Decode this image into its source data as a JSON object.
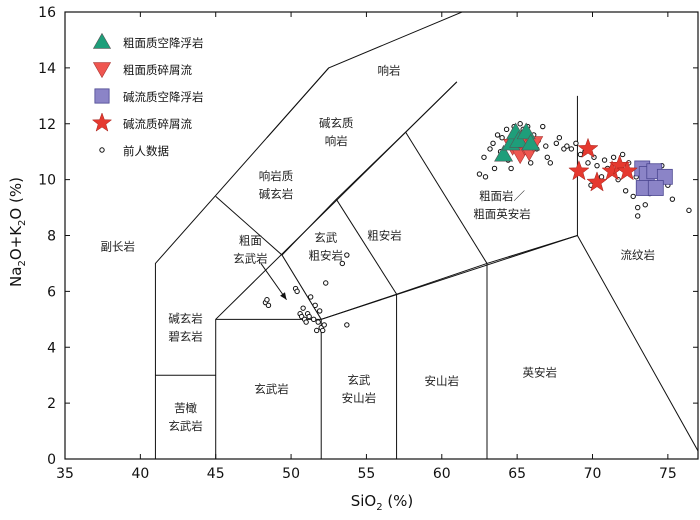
{
  "chart_data": {
    "type": "scatter",
    "title": "",
    "xlabel": "SiO",
    "xlabel_sub": "2",
    "xlabel_tail": " (%)",
    "ylabel": {
      "a": "Na",
      "a_sub": "2",
      "b": "O+K",
      "b_sub": "2",
      "c": "O (%)"
    },
    "xlim": [
      35,
      77
    ],
    "ylim": [
      0,
      16
    ],
    "xticks": [
      35,
      40,
      45,
      50,
      55,
      60,
      65,
      70,
      75
    ],
    "yticks": [
      0,
      2,
      4,
      6,
      8,
      10,
      12,
      14,
      16
    ],
    "boundaries": [
      [
        [
          41,
          0
        ],
        [
          41,
          7
        ],
        [
          52.5,
          14
        ],
        [
          69,
          17.73
        ]
      ],
      [
        [
          41,
          3
        ],
        [
          45,
          3
        ]
      ],
      [
        [
          45,
          0
        ],
        [
          45,
          5
        ],
        [
          61,
          13.5
        ]
      ],
      [
        [
          45,
          5
        ],
        [
          52,
          5
        ],
        [
          69,
          8
        ],
        [
          77.3,
          0
        ]
      ],
      [
        [
          52,
          0
        ],
        [
          52,
          5
        ],
        [
          57,
          5.9
        ],
        [
          63,
          7
        ],
        [
          69,
          8
        ]
      ],
      [
        [
          57,
          0
        ],
        [
          57,
          5.9
        ]
      ],
      [
        [
          63,
          0
        ],
        [
          63,
          7
        ]
      ],
      [
        [
          69,
          8
        ],
        [
          69,
          13
        ]
      ],
      [
        [
          45,
          9.4
        ],
        [
          49.4,
          7.3
        ],
        [
          53,
          9.3
        ],
        [
          57.6,
          11.7
        ],
        [
          61,
          13.5
        ]
      ],
      [
        [
          48.4,
          11.5
        ],
        [
          52.5,
          14
        ]
      ],
      [
        [
          49.4,
          7.3
        ],
        [
          52,
          5
        ]
      ],
      [
        [
          53,
          9.3
        ],
        [
          57,
          5.9
        ]
      ],
      [
        [
          57.6,
          11.7
        ],
        [
          63,
          7
        ]
      ]
    ],
    "field_labels": [
      {
        "lines": [
          "响岩"
        ],
        "x": 56.5,
        "y": 13.9
      },
      {
        "lines": [
          "碱玄质",
          "响岩"
        ],
        "x": 53.0,
        "y": 11.7
      },
      {
        "lines": [
          "响岩质",
          "碱玄岩"
        ],
        "x": 49.0,
        "y": 9.8
      },
      {
        "lines": [
          "粗面",
          "玄武岩"
        ],
        "x": 47.3,
        "y": 7.5
      },
      {
        "lines": [
          "玄武",
          "粗安岩"
        ],
        "x": 52.3,
        "y": 7.6
      },
      {
        "lines": [
          "粗安岩"
        ],
        "x": 56.2,
        "y": 8.0
      },
      {
        "lines": [
          "粗面岩／",
          "粗面英安岩"
        ],
        "x": 64.0,
        "y": 9.1
      },
      {
        "lines": [
          "副长岩"
        ],
        "x": 38.5,
        "y": 7.6
      },
      {
        "lines": [
          "碱玄岩",
          "碧玄岩"
        ],
        "x": 43.0,
        "y": 4.7
      },
      {
        "lines": [
          "流纹岩"
        ],
        "x": 73.0,
        "y": 7.3
      },
      {
        "lines": [
          "玄武岩"
        ],
        "x": 48.7,
        "y": 2.5
      },
      {
        "lines": [
          "玄武",
          "安山岩"
        ],
        "x": 54.5,
        "y": 2.5
      },
      {
        "lines": [
          "安山岩"
        ],
        "x": 60.0,
        "y": 2.8
      },
      {
        "lines": [
          "英安岩"
        ],
        "x": 66.5,
        "y": 3.1
      },
      {
        "lines": [
          "苦橄",
          "玄武岩"
        ],
        "x": 43.0,
        "y": 1.5
      }
    ],
    "arrow": {
      "from": [
        48.0,
        7.0
      ],
      "to": [
        49.7,
        5.7
      ]
    },
    "series": [
      {
        "name": "粗面质空降浮岩",
        "marker": "triangle-up",
        "color": "#1e9e7a",
        "points": [
          [
            64.1,
            10.9
          ],
          [
            64.6,
            11.3
          ],
          [
            64.9,
            11.7
          ],
          [
            65.1,
            11.4
          ],
          [
            65.6,
            11.7
          ],
          [
            65.9,
            11.3
          ]
        ]
      },
      {
        "name": "粗面质碎屑流",
        "marker": "triangle-down",
        "color": "#ef5650",
        "points": [
          [
            64.7,
            11.2
          ],
          [
            65.2,
            10.9
          ],
          [
            65.5,
            11.2
          ],
          [
            65.8,
            11.0
          ],
          [
            66.1,
            11.3
          ],
          [
            65.3,
            11.5
          ]
        ]
      },
      {
        "name": "碱流质空降浮岩",
        "marker": "square",
        "color": "#8b84c7",
        "points": [
          [
            73.3,
            10.4
          ],
          [
            73.6,
            10.2
          ],
          [
            74.1,
            10.3
          ],
          [
            74.8,
            10.1
          ],
          [
            73.4,
            9.7
          ],
          [
            74.2,
            9.7
          ]
        ]
      },
      {
        "name": "碱流质碎屑流",
        "marker": "star",
        "color": "#e5392f",
        "points": [
          [
            69.1,
            10.3
          ],
          [
            69.7,
            11.1
          ],
          [
            70.3,
            9.9
          ],
          [
            71.3,
            10.3
          ],
          [
            71.8,
            10.5
          ],
          [
            72.3,
            10.3
          ]
        ]
      },
      {
        "name": "前人数据",
        "marker": "circle-open",
        "color": "#111111",
        "points": [
          [
            48.3,
            5.6
          ],
          [
            48.5,
            5.5
          ],
          [
            48.4,
            5.7
          ],
          [
            50.3,
            6.1
          ],
          [
            50.4,
            6.0
          ],
          [
            50.6,
            5.2
          ],
          [
            50.7,
            5.1
          ],
          [
            50.9,
            5.0
          ],
          [
            51.1,
            5.2
          ],
          [
            51.0,
            4.9
          ],
          [
            51.3,
            5.8
          ],
          [
            51.5,
            5.0
          ],
          [
            51.7,
            4.6
          ],
          [
            51.8,
            4.9
          ],
          [
            52.0,
            4.7
          ],
          [
            52.1,
            4.6
          ],
          [
            51.9,
            5.3
          ],
          [
            51.6,
            5.5
          ],
          [
            52.2,
            4.8
          ],
          [
            52.3,
            6.3
          ],
          [
            53.4,
            7.0
          ],
          [
            53.7,
            7.3
          ],
          [
            53.7,
            4.8
          ],
          [
            51.2,
            5.1
          ],
          [
            50.8,
            5.4
          ],
          [
            62.5,
            10.2
          ],
          [
            62.8,
            10.8
          ],
          [
            62.9,
            10.1
          ],
          [
            63.2,
            11.1
          ],
          [
            63.4,
            11.3
          ],
          [
            63.5,
            10.4
          ],
          [
            63.7,
            11.6
          ],
          [
            63.9,
            11.0
          ],
          [
            64.0,
            11.5
          ],
          [
            64.3,
            11.8
          ],
          [
            64.4,
            10.7
          ],
          [
            64.6,
            10.4
          ],
          [
            64.8,
            11.9
          ],
          [
            65.2,
            12.0
          ],
          [
            65.4,
            11.8
          ],
          [
            65.7,
            11.9
          ],
          [
            65.9,
            10.6
          ],
          [
            66.1,
            11.6
          ],
          [
            66.3,
            11.1
          ],
          [
            66.4,
            11.4
          ],
          [
            66.7,
            11.9
          ],
          [
            66.9,
            11.2
          ],
          [
            67.0,
            10.8
          ],
          [
            67.2,
            10.6
          ],
          [
            67.6,
            11.3
          ],
          [
            67.8,
            11.5
          ],
          [
            68.1,
            11.1
          ],
          [
            68.3,
            11.2
          ],
          [
            68.6,
            11.1
          ],
          [
            68.9,
            11.3
          ],
          [
            69.2,
            10.9
          ],
          [
            69.5,
            11.0
          ],
          [
            69.7,
            10.6
          ],
          [
            70.1,
            10.8
          ],
          [
            70.3,
            10.5
          ],
          [
            70.6,
            10.1
          ],
          [
            70.8,
            10.7
          ],
          [
            71.0,
            10.4
          ],
          [
            71.4,
            10.8
          ],
          [
            71.7,
            10.0
          ],
          [
            72.0,
            10.9
          ],
          [
            72.2,
            9.6
          ],
          [
            72.4,
            10.6
          ],
          [
            72.7,
            9.4
          ],
          [
            72.9,
            10.1
          ],
          [
            73.0,
            9.0
          ],
          [
            73.0,
            8.7
          ],
          [
            73.5,
            9.1
          ],
          [
            73.8,
            9.5
          ],
          [
            74.3,
            9.6
          ],
          [
            75.0,
            9.8
          ],
          [
            75.3,
            9.3
          ],
          [
            76.4,
            8.9
          ],
          [
            74.6,
            10.5
          ],
          [
            69.9,
            9.8
          ]
        ]
      }
    ],
    "legend_position": "top-left"
  }
}
